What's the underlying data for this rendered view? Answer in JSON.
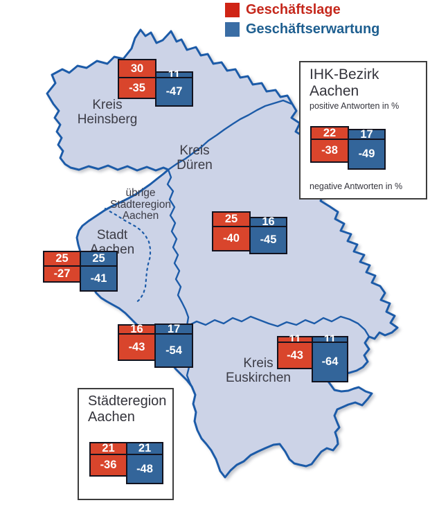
{
  "map": {
    "fill_color": "#ccd3e7",
    "border_color": "#1c5ba8"
  },
  "chart_data": {
    "type": "bar",
    "subtype": "floating bars on regional map; positive value above baseline, negative value below",
    "unit": "%",
    "series": [
      {
        "name": "Geschäftslage",
        "color": "#cf2415"
      },
      {
        "name": "Geschäftserwartung",
        "color": "#3a6da4"
      }
    ],
    "regions": [
      {
        "name": "Kreis Heinsberg",
        "label_lines": [
          "Kreis",
          "Heinsberg"
        ],
        "geschaeftslage": {
          "positive": 30,
          "negative": -35
        },
        "geschaeftserwartung": {
          "positive": 11,
          "negative": -47
        }
      },
      {
        "name": "Kreis Düren",
        "label_lines": [
          "Kreis",
          "Düren"
        ],
        "geschaeftslage": {
          "positive": 25,
          "negative": -40
        },
        "geschaeftserwartung": {
          "positive": 16,
          "negative": -45
        }
      },
      {
        "name": "Stadt Aachen",
        "label_lines": [
          "Stadt",
          "Aachen"
        ],
        "geschaeftslage": {
          "positive": 25,
          "negative": -27
        },
        "geschaeftserwartung": {
          "positive": 25,
          "negative": -41
        }
      },
      {
        "name": "übrige Städteregion Aachen",
        "label_lines": [
          "übrige",
          "Städteregion",
          "Aachen"
        ],
        "geschaeftslage": {
          "positive": 16,
          "negative": -43
        },
        "geschaeftserwartung": {
          "positive": 17,
          "negative": -54
        }
      },
      {
        "name": "Kreis Euskirchen",
        "label_lines": [
          "Kreis",
          "Euskirchen"
        ],
        "geschaeftslage": {
          "positive": 11,
          "negative": -43
        },
        "geschaeftserwartung": {
          "positive": 11,
          "negative": -64
        }
      }
    ],
    "aggregates": [
      {
        "name": "IHK-Bezirk Aachen",
        "title_lines": [
          "IHK-Bezirk",
          "Aachen"
        ],
        "positive_note": "positive Antworten in %",
        "negative_note": "negative Antworten in %",
        "geschaeftslage": {
          "positive": 22,
          "negative": -38
        },
        "geschaeftserwartung": {
          "positive": 17,
          "negative": -49
        }
      },
      {
        "name": "Städteregion Aachen",
        "title_lines": [
          "Städteregion",
          "Aachen"
        ],
        "geschaeftslage": {
          "positive": 21,
          "negative": -36
        },
        "geschaeftserwartung": {
          "positive": 21,
          "negative": -48
        }
      }
    ]
  }
}
